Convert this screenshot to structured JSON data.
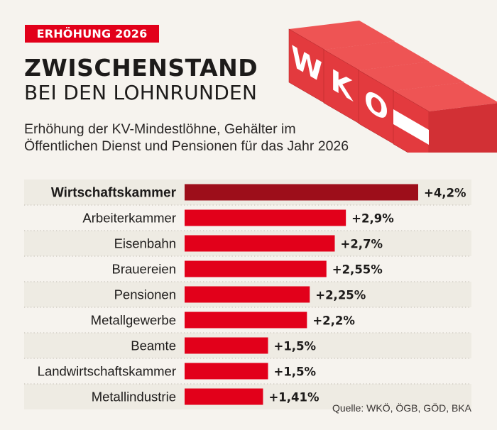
{
  "header": {
    "badge": "ERHÖHUNG 2026",
    "title_line1": "ZWISCHENSTAND",
    "title_line2": "BEI DEN LOHNRUNDEN",
    "subtitle_line1": "Erhöhung der KV-Mindestlöhne, Gehälter im",
    "subtitle_line2": "Öffentlichen Dienst und Pensionen für das Jahr 2026"
  },
  "illustration": {
    "cube_letters": [
      "W",
      "K",
      "O"
    ],
    "last_cube": "austrian-flag-stripe"
  },
  "colors": {
    "accent": "#e2001a",
    "highlight_bar": "#9d0e1a",
    "bar": "#e2001a",
    "band": "#eeebe3",
    "background": "#f6f3ee",
    "cube": "#e84545"
  },
  "chart_data": {
    "type": "bar",
    "orientation": "horizontal",
    "title": "Zwischenstand bei den Lohnrunden",
    "xlabel": "",
    "ylabel": "",
    "xlim": [
      0,
      4.2
    ],
    "grid": false,
    "legend": "none",
    "highlight_category": "Wirtschaftskammer",
    "categories": [
      "Wirtschaftskammer",
      "Arbeiterkammer",
      "Eisenbahn",
      "Brauereien",
      "Pensionen",
      "Metallgewerbe",
      "Beamte",
      "Landwirtschaftskammer",
      "Metallindustrie"
    ],
    "values": [
      4.2,
      2.9,
      2.7,
      2.55,
      2.25,
      2.2,
      1.5,
      1.5,
      1.41
    ],
    "value_labels": [
      "+4,2%",
      "+2,9%",
      "+2,7%",
      "+2,55%",
      "+2,25%",
      "+2,2%",
      "+1,5%",
      "+1,5%",
      "+1,41%"
    ],
    "unit": "%"
  },
  "footer": {
    "source": "Quelle: WKÖ, ÖGB, GÖD, BKA"
  }
}
